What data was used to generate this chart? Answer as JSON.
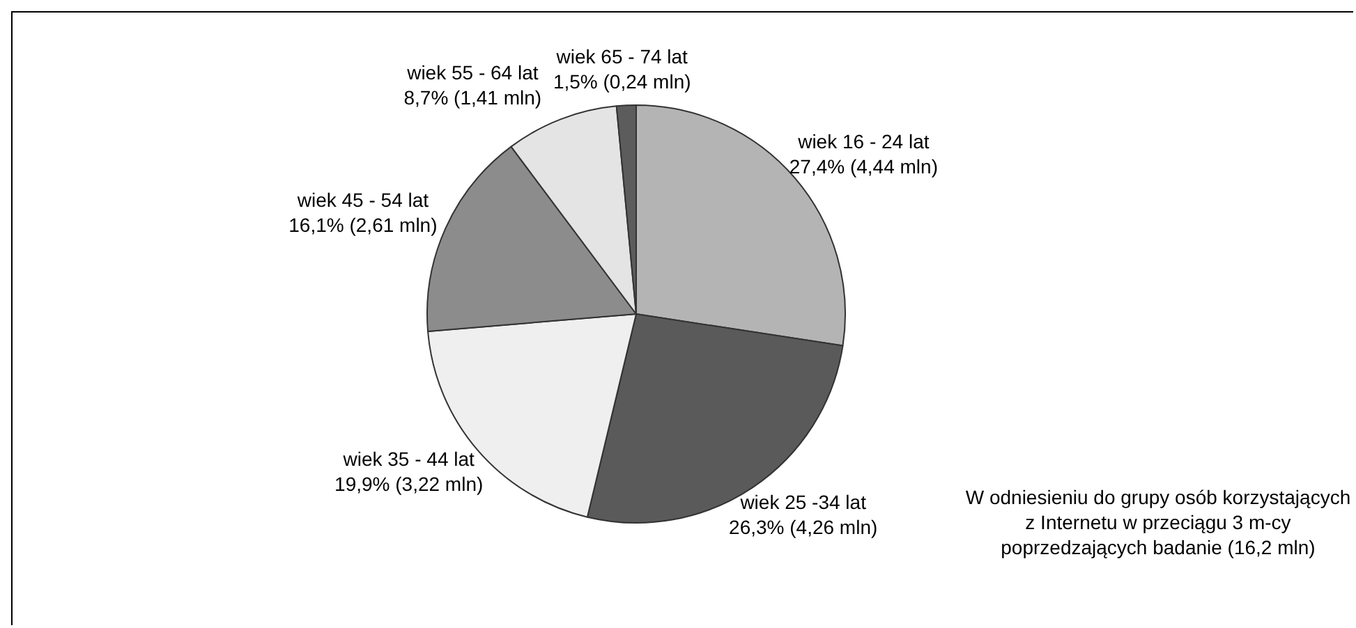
{
  "chart_data": {
    "type": "pie",
    "categories": [
      "wiek 16 - 24 lat",
      "wiek 25 -34 lat",
      "wiek 35 - 44 lat",
      "wiek 45 - 54 lat",
      "wiek 55 - 64 lat",
      "wiek 65 - 74 lat"
    ],
    "values": [
      27.4,
      26.3,
      19.9,
      16.1,
      8.7,
      1.5
    ],
    "value_labels": [
      "27,4% (4,44 mln)",
      "26,3% (4,26 mln)",
      "19,9% (3,22 mln)",
      "16,1% (2,61 mln)",
      "8,7% (1,41 mln)",
      "1,5% (0,24 mln)"
    ],
    "colors": [
      "#b4b4b4",
      "#5a5a5a",
      "#efefef",
      "#8c8c8c",
      "#e4e4e4",
      "#5c5c5c"
    ],
    "legend": false,
    "annotations": [
      "W odniesieniu do grupy osób korzystających z Internetu w przeciągu 3 m-cy poprzedzających badanie (16,2 mln)"
    ]
  }
}
